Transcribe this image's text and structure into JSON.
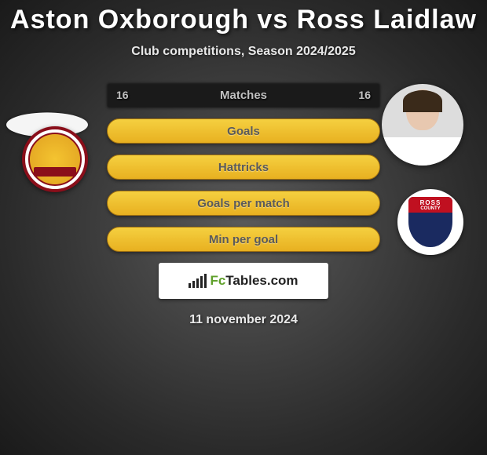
{
  "title": "Aston Oxborough vs Ross Laidlaw",
  "subtitle": "Club competitions, Season 2024/2025",
  "date": "11 november 2024",
  "watermark": {
    "prefix": "Fc",
    "suffix": "Tables",
    "tld": ".com"
  },
  "players": {
    "left": {
      "name": "Aston Oxborough",
      "club": "Motherwell"
    },
    "right": {
      "name": "Ross Laidlaw",
      "club": "Ross County",
      "club_top": "ROSS",
      "club_sub": "COUNTY"
    }
  },
  "rows": [
    {
      "type": "dark",
      "label": "Matches",
      "left": "16",
      "right": "16"
    },
    {
      "type": "yellow",
      "label": "Goals"
    },
    {
      "type": "yellow",
      "label": "Hattricks"
    },
    {
      "type": "yellow",
      "label": "Goals per match"
    },
    {
      "type": "yellow",
      "label": "Min per goal"
    }
  ],
  "style": {
    "title_color": "#ffffff",
    "title_fontsize": 34,
    "subtitle_fontsize": 16,
    "row_width": 348,
    "dark_bg": "#1a1a1a",
    "yellow_grad_top": "#f5d040",
    "yellow_grad_bot": "#e8b020",
    "label_color_dark": "#c0c0c0",
    "label_color_yellow": "#5a5a5a",
    "avatar_size": 104,
    "club_size": 84
  }
}
